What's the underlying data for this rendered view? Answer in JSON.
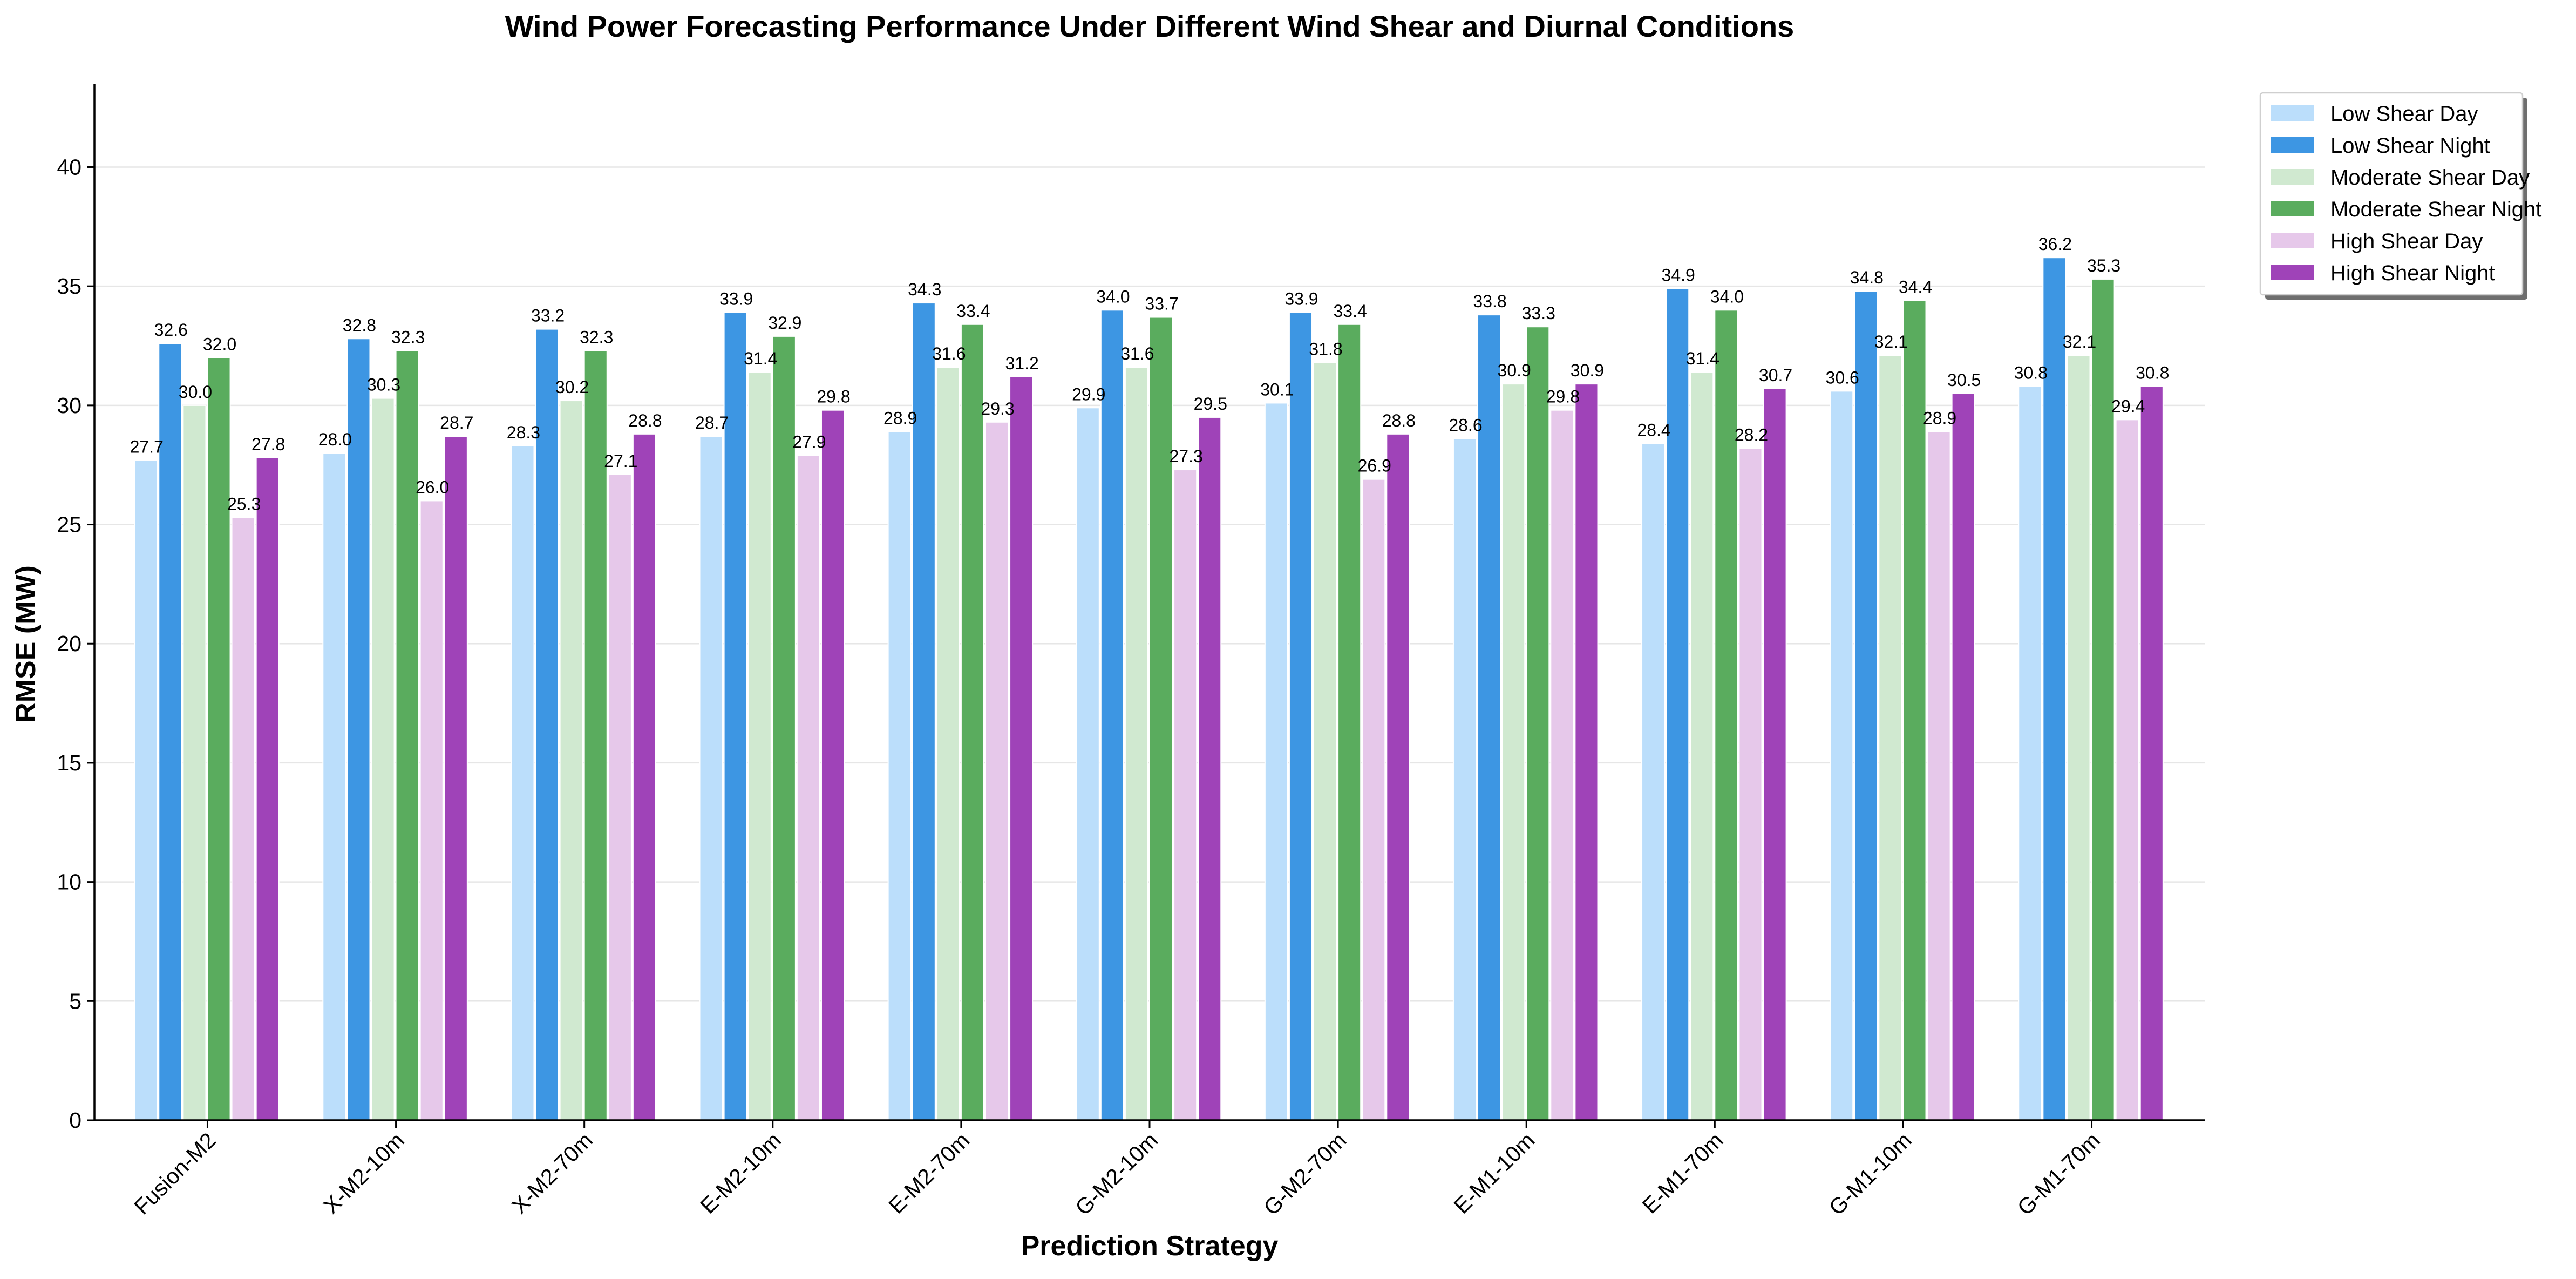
{
  "chart_data": {
    "type": "bar",
    "title": "Wind Power Forecasting Performance Under Different Wind Shear and Diurnal Conditions",
    "xlabel": "Prediction Strategy",
    "ylabel": "RMSE (MW)",
    "ylim": [
      0,
      43.5
    ],
    "yticks": [
      0,
      5,
      10,
      15,
      20,
      25,
      30,
      35,
      40
    ],
    "grid": "horizontal",
    "legend_position": "top-right, outside plot",
    "categories": [
      "Fusion-M2",
      "X-M2-10m",
      "X-M2-70m",
      "E-M2-10m",
      "E-M2-70m",
      "G-M2-10m",
      "G-M2-70m",
      "E-M1-10m",
      "E-M1-70m",
      "G-M1-10m",
      "G-M1-70m"
    ],
    "series": [
      {
        "name": "Low Shear Day",
        "color": "#bbdefb",
        "values": [
          27.7,
          28.0,
          28.3,
          28.7,
          28.9,
          29.9,
          30.1,
          28.6,
          28.4,
          30.6,
          30.8
        ]
      },
      {
        "name": "Low Shear Night",
        "color": "#3d96e3",
        "values": [
          32.6,
          32.8,
          33.2,
          33.9,
          34.3,
          34.0,
          33.9,
          33.8,
          34.9,
          34.8,
          36.2
        ]
      },
      {
        "name": "Moderate Shear Day",
        "color": "#d0e9d0",
        "values": [
          30.0,
          30.3,
          30.2,
          31.4,
          31.6,
          31.6,
          31.8,
          30.9,
          31.4,
          32.1,
          32.1
        ]
      },
      {
        "name": "Moderate Shear Night",
        "color": "#5aac5e",
        "values": [
          32.0,
          32.3,
          32.3,
          32.9,
          33.4,
          33.7,
          33.4,
          33.3,
          34.0,
          34.4,
          35.3
        ]
      },
      {
        "name": "High Shear Day",
        "color": "#e6c8ea",
        "values": [
          25.3,
          26.0,
          27.1,
          27.9,
          29.3,
          27.3,
          26.9,
          29.8,
          28.2,
          28.9,
          29.4
        ]
      },
      {
        "name": "High Shear Night",
        "color": "#9f43b8",
        "values": [
          27.8,
          28.7,
          28.8,
          29.8,
          31.2,
          29.5,
          28.8,
          30.9,
          30.7,
          30.5,
          30.8
        ]
      }
    ]
  }
}
